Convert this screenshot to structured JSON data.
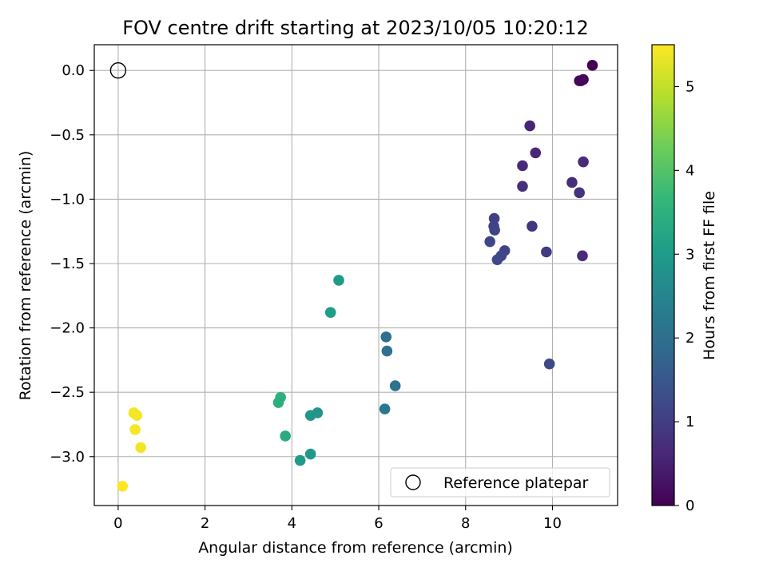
{
  "chart_data": {
    "type": "scatter",
    "title": "FOV centre drift starting at 2023/10/05 10:20:12",
    "xlabel": "Angular distance from reference (arcmin)",
    "ylabel": "Rotation from reference (arcmin)",
    "xlim": [
      -0.55,
      11.5
    ],
    "ylim": [
      -3.38,
      0.2
    ],
    "x_ticks": [
      0,
      2,
      4,
      6,
      8,
      10
    ],
    "y_ticks": [
      0.0,
      -0.5,
      -1.0,
      -1.5,
      -2.0,
      -2.5,
      -3.0
    ],
    "x_tick_labels": [
      "0",
      "2",
      "4",
      "6",
      "8",
      "10"
    ],
    "y_tick_labels": [
      "0.0",
      "−0.5",
      "−1.0",
      "−1.5",
      "−2.0",
      "−2.5",
      "−3.0"
    ],
    "grid": true,
    "legend": {
      "position": "lower right",
      "entries": [
        {
          "label": "Reference platepar",
          "marker": "open-circle"
        }
      ]
    },
    "reference_point": {
      "x": 0,
      "y": 0
    },
    "colorbar": {
      "label": "Hours from first FF file",
      "colormap": "viridis",
      "range": [
        0,
        5.5
      ],
      "ticks": [
        0,
        1,
        2,
        3,
        4,
        5
      ],
      "tick_labels": [
        "0",
        "1",
        "2",
        "3",
        "4",
        "5"
      ]
    },
    "points": [
      {
        "x": 10.92,
        "y": 0.04,
        "t": 0.0
      },
      {
        "x": 10.62,
        "y": -0.08,
        "t": 0.05
      },
      {
        "x": 10.66,
        "y": -0.08,
        "t": 0.08
      },
      {
        "x": 10.71,
        "y": -0.07,
        "t": 0.12
      },
      {
        "x": 9.48,
        "y": -0.43,
        "t": 0.55
      },
      {
        "x": 9.61,
        "y": -0.64,
        "t": 0.6
      },
      {
        "x": 9.31,
        "y": -0.74,
        "t": 0.65
      },
      {
        "x": 10.71,
        "y": -0.71,
        "t": 0.68
      },
      {
        "x": 10.45,
        "y": -0.87,
        "t": 0.72
      },
      {
        "x": 9.31,
        "y": -0.9,
        "t": 0.76
      },
      {
        "x": 10.62,
        "y": -0.95,
        "t": 0.8
      },
      {
        "x": 9.53,
        "y": -1.21,
        "t": 0.85
      },
      {
        "x": 8.66,
        "y": -1.15,
        "t": 1.05
      },
      {
        "x": 8.65,
        "y": -1.21,
        "t": 1.08
      },
      {
        "x": 8.67,
        "y": -1.24,
        "t": 1.12
      },
      {
        "x": 8.56,
        "y": -1.33,
        "t": 1.15
      },
      {
        "x": 8.9,
        "y": -1.4,
        "t": 1.1
      },
      {
        "x": 8.82,
        "y": -1.44,
        "t": 1.14
      },
      {
        "x": 8.73,
        "y": -1.47,
        "t": 1.18
      },
      {
        "x": 9.86,
        "y": -1.41,
        "t": 0.95
      },
      {
        "x": 10.69,
        "y": -1.44,
        "t": 0.7
      },
      {
        "x": 9.93,
        "y": -2.28,
        "t": 1.2
      },
      {
        "x": 6.17,
        "y": -2.07,
        "t": 2.0
      },
      {
        "x": 6.19,
        "y": -2.18,
        "t": 2.05
      },
      {
        "x": 6.38,
        "y": -2.45,
        "t": 2.1
      },
      {
        "x": 6.14,
        "y": -2.63,
        "t": 2.2
      },
      {
        "x": 5.08,
        "y": -1.63,
        "t": 3.0
      },
      {
        "x": 4.89,
        "y": -1.88,
        "t": 3.05
      },
      {
        "x": 4.59,
        "y": -2.66,
        "t": 2.85
      },
      {
        "x": 4.43,
        "y": -2.68,
        "t": 2.9
      },
      {
        "x": 4.43,
        "y": -2.98,
        "t": 2.95
      },
      {
        "x": 4.19,
        "y": -3.03,
        "t": 3.0
      },
      {
        "x": 3.85,
        "y": -2.84,
        "t": 3.35
      },
      {
        "x": 3.74,
        "y": -2.54,
        "t": 3.5
      },
      {
        "x": 3.69,
        "y": -2.58,
        "t": 3.45
      },
      {
        "x": 0.36,
        "y": -2.66,
        "t": 5.4
      },
      {
        "x": 0.43,
        "y": -2.68,
        "t": 5.42
      },
      {
        "x": 0.39,
        "y": -2.79,
        "t": 5.45
      },
      {
        "x": 0.52,
        "y": -2.93,
        "t": 5.4
      },
      {
        "x": 0.1,
        "y": -3.23,
        "t": 5.5
      }
    ]
  }
}
